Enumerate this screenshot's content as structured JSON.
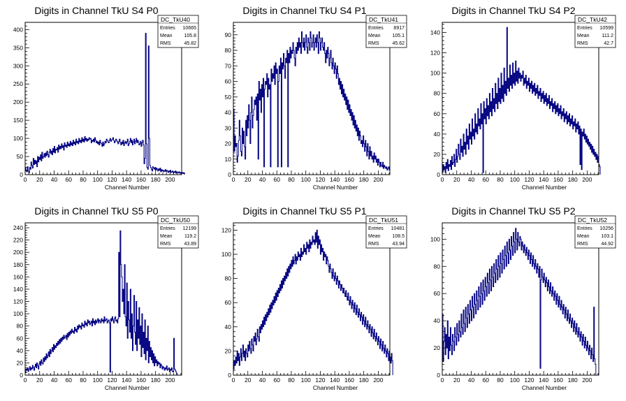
{
  "colors": {
    "line": "#000080",
    "frame": "#000000",
    "background": "#ffffff"
  },
  "chart_data": [
    {
      "type": "histogram",
      "title": "Digits in Channel TkU S4 P0",
      "xlabel": "Channel Number",
      "xlim": [
        0,
        216
      ],
      "ylim": [
        0,
        420
      ],
      "xticks": [
        0,
        20,
        40,
        60,
        80,
        100,
        120,
        140,
        160,
        180,
        200
      ],
      "yticks": [
        50,
        100,
        150,
        200,
        250,
        300,
        350,
        400
      ],
      "stats": {
        "name": "DC_TkU40",
        "entries": "10665",
        "mean": "105.8",
        "rms": "45.82"
      },
      "values": [
        18,
        12,
        8,
        22,
        10,
        5,
        20,
        15,
        35,
        25,
        18,
        45,
        28,
        40,
        30,
        38,
        22,
        50,
        35,
        48,
        42,
        55,
        38,
        62,
        45,
        50,
        58,
        48,
        60,
        52,
        65,
        55,
        48,
        62,
        70,
        58,
        65,
        55,
        72,
        62,
        78,
        60,
        70,
        68,
        75,
        62,
        82,
        70,
        78,
        72,
        85,
        75,
        80,
        68,
        88,
        78,
        82,
        75,
        90,
        80,
        85,
        78,
        92,
        82,
        88,
        80,
        95,
        85,
        90,
        82,
        98,
        88,
        92,
        85,
        100,
        90,
        95,
        88,
        102,
        92,
        98,
        90,
        105,
        95,
        100,
        92,
        98,
        95,
        102,
        98,
        100,
        88,
        95,
        92,
        98,
        90,
        102,
        95,
        88,
        92,
        85,
        90,
        82,
        95,
        88,
        85,
        78,
        90,
        80,
        85,
        92,
        88,
        98,
        95,
        90,
        88,
        95,
        100,
        92,
        95,
        98,
        102,
        95,
        88,
        92,
        98,
        95,
        90,
        85,
        92,
        98,
        88,
        82,
        90,
        85,
        95,
        80,
        88,
        92,
        85,
        90,
        98,
        80,
        85,
        92,
        100,
        88,
        95,
        82,
        90,
        98,
        85,
        92,
        100,
        88,
        95,
        90,
        82,
        85,
        92,
        78,
        88,
        95,
        82,
        30,
        45,
        390,
        85,
        20,
        15,
        355,
        100,
        25,
        20,
        15,
        10,
        22,
        18,
        15,
        20,
        12,
        18,
        15,
        10,
        16,
        12,
        18,
        8,
        14,
        10,
        12,
        8,
        10,
        14,
        8,
        12,
        10,
        6,
        10,
        8,
        12,
        6,
        8,
        10,
        5,
        8,
        6,
        10,
        4,
        8,
        6,
        5,
        8,
        4,
        6,
        5,
        4,
        6,
        3,
        5
      ]
    },
    {
      "type": "histogram",
      "title": "Digits in Channel TkU S4 P1",
      "xlabel": "Channel Number",
      "xlim": [
        0,
        216
      ],
      "ylim": [
        0,
        98
      ],
      "xticks": [
        0,
        20,
        40,
        60,
        80,
        100,
        120,
        140,
        160,
        180,
        200
      ],
      "yticks": [
        10,
        20,
        30,
        40,
        50,
        60,
        70,
        80,
        90
      ],
      "stats": {
        "name": "DC_TkU41",
        "entries": "8917",
        "mean": "105.1",
        "rms": "45.62"
      },
      "values": [
        42,
        15,
        25,
        18,
        20,
        8,
        12,
        22,
        35,
        25,
        15,
        12,
        30,
        20,
        28,
        18,
        10,
        35,
        25,
        38,
        30,
        45,
        35,
        20,
        40,
        50,
        30,
        38,
        42,
        48,
        45,
        50,
        35,
        52,
        10,
        60,
        48,
        55,
        40,
        58,
        50,
        62,
        5,
        55,
        60,
        58,
        65,
        50,
        62,
        55,
        58,
        5,
        68,
        60,
        65,
        62,
        70,
        58,
        72,
        65,
        68,
        5,
        60,
        70,
        65,
        75,
        5,
        72,
        68,
        78,
        70,
        62,
        75,
        72,
        80,
        5,
        78,
        72,
        82,
        75,
        80,
        78,
        85,
        80,
        75,
        70,
        82,
        78,
        85,
        80,
        88,
        82,
        85,
        78,
        92,
        85,
        82,
        88,
        80,
        85,
        90,
        82,
        78,
        88,
        85,
        80,
        92,
        88,
        82,
        85,
        90,
        80,
        85,
        88,
        82,
        90,
        85,
        78,
        92,
        88,
        80,
        85,
        88,
        82,
        80,
        85,
        78,
        72,
        80,
        75,
        82,
        78,
        70,
        75,
        80,
        72,
        68,
        75,
        70,
        65,
        72,
        68,
        62,
        70,
        65,
        58,
        62,
        55,
        60,
        52,
        58,
        50,
        55,
        48,
        52,
        45,
        50,
        42,
        48,
        40,
        45,
        38,
        42,
        35,
        40,
        32,
        38,
        30,
        35,
        28,
        32,
        25,
        30,
        22,
        28,
        25,
        20,
        22,
        18,
        25,
        20,
        15,
        22,
        18,
        12,
        20,
        15,
        10,
        18,
        12,
        15,
        10,
        12,
        8,
        14,
        10,
        12,
        8,
        10,
        6,
        10,
        8,
        5,
        8,
        6,
        5,
        8,
        4,
        6,
        5,
        4,
        5,
        3,
        4,
        5,
        3
      ]
    },
    {
      "type": "histogram",
      "title": "Digits in Channel TkU S4 P2",
      "xlabel": "Channel Number",
      "xlim": [
        0,
        216
      ],
      "ylim": [
        0,
        150
      ],
      "xticks": [
        0,
        20,
        40,
        60,
        80,
        100,
        120,
        140,
        160,
        180,
        200
      ],
      "yticks": [
        20,
        40,
        60,
        80,
        100,
        120,
        140
      ],
      "stats": {
        "name": "DC_TkU42",
        "entries": "10599",
        "mean": "111.2",
        "rms": "42.7"
      },
      "values": [
        2,
        10,
        5,
        8,
        2,
        12,
        6,
        15,
        4,
        10,
        8,
        14,
        5,
        18,
        10,
        12,
        20,
        8,
        15,
        25,
        12,
        18,
        30,
        20,
        15,
        35,
        22,
        28,
        18,
        40,
        25,
        32,
        20,
        45,
        30,
        38,
        25,
        50,
        35,
        42,
        30,
        55,
        38,
        45,
        35,
        60,
        42,
        50,
        40,
        65,
        48,
        55,
        45,
        70,
        50,
        60,
        2,
        72,
        55,
        65,
        50,
        75,
        58,
        68,
        55,
        80,
        62,
        72,
        58,
        85,
        65,
        75,
        62,
        90,
        70,
        80,
        65,
        95,
        72,
        85,
        70,
        100,
        75,
        88,
        72,
        105,
        80,
        92,
        78,
        145,
        85,
        95,
        82,
        108,
        88,
        98,
        85,
        110,
        90,
        100,
        88,
        112,
        92,
        102,
        90,
        105,
        95,
        100,
        92,
        98,
        95,
        102,
        88,
        95,
        90,
        98,
        85,
        92,
        88,
        95,
        82,
        90,
        85,
        92,
        80,
        88,
        82,
        90,
        78,
        85,
        80,
        88,
        75,
        82,
        78,
        85,
        72,
        80,
        75,
        82,
        70,
        78,
        72,
        80,
        68,
        75,
        70,
        78,
        65,
        72,
        68,
        75,
        62,
        70,
        65,
        72,
        60,
        68,
        62,
        70,
        58,
        65,
        60,
        68,
        55,
        62,
        58,
        65,
        52,
        60,
        55,
        62,
        50,
        58,
        52,
        60,
        48,
        55,
        50,
        58,
        45,
        52,
        48,
        55,
        42,
        50,
        45,
        52,
        40,
        48,
        10,
        45,
        5,
        42,
        38,
        45,
        35,
        40,
        32,
        38,
        30,
        35,
        28,
        32,
        25,
        30,
        22,
        28,
        20,
        25,
        18,
        22,
        15,
        20,
        12,
        18,
        10,
        8
      ]
    },
    {
      "type": "histogram",
      "title": "Digits in Channel TkU S5 P0",
      "xlabel": "Channel Number",
      "xlim": [
        0,
        216
      ],
      "ylim": [
        0,
        248
      ],
      "xticks": [
        0,
        20,
        40,
        60,
        80,
        100,
        120,
        140,
        160,
        180,
        200
      ],
      "yticks": [
        20,
        40,
        60,
        80,
        100,
        120,
        140,
        160,
        180,
        200,
        220,
        240
      ],
      "stats": {
        "name": "DC_TkU50",
        "entries": "12199",
        "mean": "119.2",
        "rms": "43.89"
      },
      "values": [
        5,
        10,
        8,
        12,
        6,
        10,
        14,
        8,
        12,
        10,
        16,
        12,
        8,
        14,
        18,
        12,
        20,
        15,
        10,
        18,
        22,
        16,
        25,
        20,
        18,
        28,
        22,
        30,
        25,
        35,
        28,
        32,
        38,
        30,
        42,
        35,
        40,
        45,
        38,
        50,
        42,
        48,
        45,
        52,
        48,
        55,
        50,
        58,
        52,
        60,
        55,
        62,
        58,
        65,
        60,
        62,
        65,
        58,
        68,
        62,
        70,
        65,
        72,
        68,
        75,
        70,
        72,
        68,
        78,
        72,
        75,
        70,
        80,
        75,
        82,
        78,
        80,
        75,
        85,
        80,
        82,
        78,
        88,
        82,
        85,
        80,
        90,
        85,
        88,
        82,
        85,
        88,
        80,
        92,
        85,
        88,
        82,
        90,
        85,
        88,
        92,
        85,
        90,
        88,
        85,
        92,
        88,
        90,
        85,
        95,
        88,
        90,
        92,
        85,
        88,
        90,
        85,
        5,
        92,
        88,
        95,
        90,
        85,
        92,
        95,
        88,
        90,
        85,
        92,
        200,
        95,
        235,
        180,
        160,
        120,
        140,
        100,
        180,
        95,
        80,
        150,
        60,
        120,
        90,
        70,
        140,
        60,
        100,
        40,
        80,
        130,
        70,
        50,
        120,
        40,
        90,
        60,
        110,
        50,
        80,
        30,
        100,
        45,
        70,
        35,
        90,
        25,
        60,
        40,
        80,
        20,
        55,
        30,
        45,
        25,
        40,
        20,
        35,
        15,
        30,
        20,
        25,
        15,
        22,
        18,
        20,
        12,
        18,
        15,
        10,
        14,
        12,
        8,
        12,
        10,
        15,
        8,
        10,
        12,
        6,
        10,
        8,
        12,
        6,
        5,
        60,
        10,
        8,
        5
      ]
    },
    {
      "type": "histogram",
      "title": "Digits in Channel TkU S5 P1",
      "xlabel": "Channel Number",
      "xlim": [
        0,
        216
      ],
      "ylim": [
        0,
        126
      ],
      "xticks": [
        0,
        20,
        40,
        60,
        80,
        100,
        120,
        140,
        160,
        180,
        200
      ],
      "yticks": [
        20,
        40,
        60,
        80,
        100,
        120
      ],
      "stats": {
        "name": "DC_TkU51",
        "entries": "10481",
        "mean": "108.5",
        "rms": "43.94"
      },
      "values": [
        5,
        12,
        8,
        15,
        10,
        20,
        12,
        18,
        8,
        15,
        22,
        12,
        18,
        25,
        15,
        20,
        12,
        22,
        18,
        15,
        25,
        20,
        28,
        22,
        18,
        30,
        25,
        20,
        32,
        28,
        35,
        25,
        30,
        38,
        32,
        28,
        40,
        35,
        42,
        38,
        45,
        40,
        48,
        42,
        50,
        45,
        52,
        48,
        55,
        50,
        58,
        52,
        60,
        55,
        62,
        58,
        65,
        60,
        68,
        62,
        70,
        65,
        72,
        68,
        75,
        70,
        78,
        72,
        80,
        75,
        82,
        78,
        85,
        80,
        88,
        82,
        90,
        85,
        92,
        88,
        95,
        90,
        98,
        92,
        95,
        100,
        92,
        98,
        95,
        102,
        98,
        100,
        95,
        105,
        98,
        102,
        100,
        108,
        102,
        105,
        100,
        110,
        105,
        108,
        102,
        112,
        105,
        110,
        108,
        115,
        110,
        112,
        108,
        118,
        110,
        120,
        105,
        115,
        108,
        112,
        100,
        108,
        102,
        105,
        95,
        102,
        98,
        100,
        92,
        98,
        95,
        90,
        85,
        92,
        88,
        85,
        80,
        88,
        82,
        78,
        85,
        80,
        75,
        82,
        78,
        72,
        78,
        75,
        70,
        75,
        72,
        68,
        72,
        68,
        65,
        70,
        65,
        62,
        68,
        62,
        58,
        65,
        60,
        55,
        62,
        58,
        52,
        60,
        55,
        50,
        58,
        52,
        48,
        55,
        50,
        45,
        52,
        48,
        42,
        50,
        45,
        40,
        48,
        42,
        38,
        45,
        40,
        35,
        42,
        38,
        32,
        40,
        35,
        30,
        38,
        32,
        28,
        35,
        30,
        25,
        32,
        28,
        22,
        30,
        25,
        20,
        28,
        22,
        18,
        25,
        20,
        15,
        22,
        18,
        12,
        20,
        15,
        10,
        18,
        12
      ]
    },
    {
      "type": "histogram",
      "title": "Digits in Channel TkU S5 P2",
      "xlabel": "Channel Number",
      "xlim": [
        0,
        216
      ],
      "ylim": [
        0,
        112
      ],
      "xticks": [
        0,
        20,
        40,
        60,
        80,
        100,
        120,
        140,
        160,
        180,
        200
      ],
      "yticks": [
        20,
        40,
        60,
        80,
        100
      ],
      "stats": {
        "name": "DC_TkU52",
        "entries": "10256",
        "mean": "103.1",
        "rms": "44.92"
      },
      "values": [
        45,
        10,
        25,
        35,
        15,
        30,
        20,
        40,
        12,
        28,
        18,
        35,
        22,
        15,
        30,
        25,
        18,
        35,
        28,
        22,
        38,
        30,
        25,
        40,
        32,
        28,
        45,
        35,
        30,
        48,
        38,
        32,
        50,
        42,
        35,
        52,
        45,
        38,
        55,
        48,
        40,
        58,
        50,
        42,
        60,
        52,
        45,
        62,
        55,
        48,
        65,
        58,
        50,
        68,
        60,
        52,
        70,
        62,
        55,
        72,
        65,
        58,
        75,
        68,
        60,
        78,
        70,
        62,
        80,
        72,
        65,
        82,
        75,
        68,
        85,
        78,
        70,
        88,
        80,
        72,
        90,
        82,
        75,
        92,
        85,
        78,
        95,
        88,
        80,
        98,
        90,
        82,
        100,
        92,
        85,
        102,
        95,
        88,
        105,
        98,
        90,
        108,
        100,
        92,
        105,
        98,
        95,
        102,
        100,
        92,
        98,
        95,
        90,
        96,
        92,
        88,
        94,
        90,
        85,
        92,
        88,
        82,
        90,
        85,
        80,
        88,
        82,
        78,
        85,
        80,
        75,
        82,
        78,
        72,
        80,
        5,
        70,
        78,
        72,
        68,
        75,
        70,
        65,
        72,
        68,
        62,
        70,
        65,
        60,
        68,
        62,
        58,
        65,
        60,
        55,
        62,
        58,
        52,
        60,
        55,
        50,
        58,
        52,
        48,
        55,
        50,
        45,
        52,
        48,
        42,
        50,
        45,
        40,
        48,
        42,
        38,
        45,
        40,
        35,
        42,
        38,
        32,
        40,
        35,
        30,
        38,
        32,
        28,
        35,
        30,
        25,
        32,
        28,
        22,
        30,
        25,
        20,
        28,
        22,
        18,
        25,
        20,
        15,
        22,
        18,
        12,
        20,
        15,
        10,
        50,
        12,
        8
      ]
    }
  ]
}
